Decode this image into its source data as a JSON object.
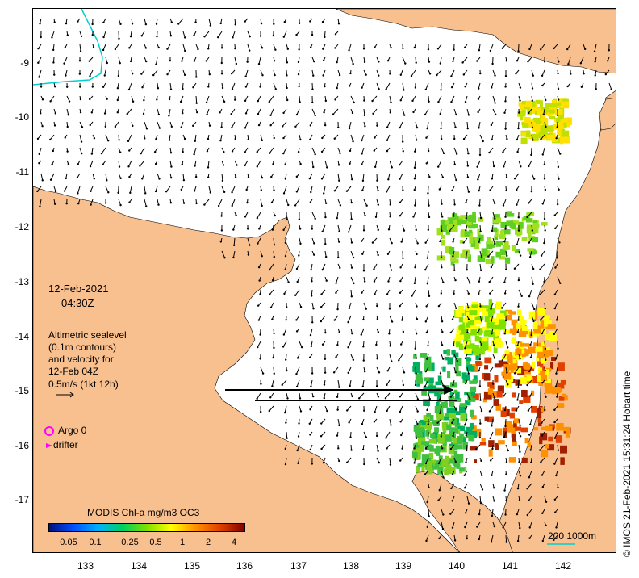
{
  "map": {
    "date": "12-Feb-2021",
    "time": "04:30Z",
    "legend_lines": [
      "Altimetric sealevel",
      "(0.1m contours)",
      "and velocity for",
      "12-Feb 04Z",
      "0.5m/s (1kt 12h)"
    ],
    "argo_label": "Argo 0",
    "drifter_label": "drifter",
    "colorbar_title": "MODIS Chl-a mg/m3 OC3",
    "colorbar_ticks": [
      "0.05",
      "0.1",
      "0.25",
      "0.5",
      "1",
      "2",
      "4"
    ],
    "scale_label": "200  1000m",
    "credit": "© IMOS 21-Feb-2021 15:31:24 Hobart time",
    "y_ticks": [
      "-9",
      "-10",
      "-11",
      "-12",
      "-13",
      "-14",
      "-15",
      "-16",
      "-17"
    ],
    "x_ticks": [
      "133",
      "134",
      "135",
      "136",
      "137",
      "138",
      "139",
      "140",
      "141",
      "142"
    ],
    "colors": {
      "land": "#f9c08f",
      "arrow": "#000000",
      "contour": "#00d0d0",
      "argo": "#ff00ff",
      "colorbar": [
        "#001080",
        "#0050ff",
        "#00b0ff",
        "#00d060",
        "#80e000",
        "#ffff00",
        "#ff9000",
        "#e04000",
        "#800000"
      ]
    }
  }
}
